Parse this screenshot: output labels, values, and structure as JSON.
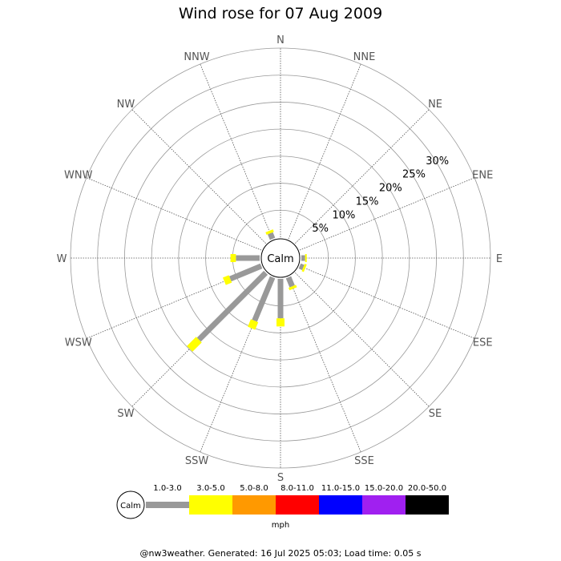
{
  "title": "Wind rose for 07 Aug 2009",
  "footer": "@nw3weather. Generated: 16 Jul 2025 05:03; Load time: 0.05 s",
  "calm_label": "Calm",
  "unit_label": "mph",
  "colors": {
    "grid": "#999999",
    "spoke": "#555555",
    "bin_1_3": "#999999",
    "bin_3_5": "#ffff00",
    "bin_5_8": "#ff9900",
    "bin_8_11": "#ff0000",
    "bin_11_15": "#0000ff",
    "bin_15_20": "#a020f0",
    "bin_20_50": "#000000"
  },
  "chart_data": {
    "type": "wind-rose",
    "title": "Wind rose for 07 Aug 2009",
    "directions": [
      "N",
      "NNE",
      "NE",
      "ENE",
      "E",
      "ESE",
      "SE",
      "SSE",
      "S",
      "SSW",
      "SW",
      "WSW",
      "W",
      "WNW",
      "NW",
      "NNW"
    ],
    "radial_ticks": [
      "5%",
      "10%",
      "15%",
      "20%",
      "25%",
      "30%"
    ],
    "radial_max": 35,
    "legend": [
      "1.0-3.0",
      "3.0-5.0",
      "5.0-8.0",
      "8.0-11.0",
      "11.0-15.0",
      "15.0-20.0",
      "20.0-50.0"
    ],
    "series": [
      {
        "name": "1.0-3.0",
        "values": [
          0,
          0,
          0,
          0,
          0.7,
          0.7,
          0,
          1.8,
          7.3,
          8.7,
          17.5,
          6.2,
          4.4,
          0,
          0,
          1.1
        ]
      },
      {
        "name": "3.0-5.0",
        "values": [
          0,
          0,
          0,
          0,
          0.3,
          0.4,
          0,
          0.5,
          1.5,
          1.5,
          2.4,
          1.2,
          1.0,
          0,
          0,
          0.5
        ]
      },
      {
        "name": "5.0-8.0",
        "values": [
          0,
          0,
          0,
          0,
          0,
          0,
          0,
          0,
          0,
          0,
          0,
          0,
          0,
          0,
          0,
          0
        ]
      },
      {
        "name": "8.0-11.0",
        "values": [
          0,
          0,
          0,
          0,
          0,
          0,
          0,
          0,
          0,
          0,
          0,
          0,
          0,
          0,
          0,
          0
        ]
      },
      {
        "name": "11.0-15.0",
        "values": [
          0,
          0,
          0,
          0,
          0,
          0,
          0,
          0,
          0,
          0,
          0,
          0,
          0,
          0,
          0,
          0
        ]
      },
      {
        "name": "15.0-20.0",
        "values": [
          0,
          0,
          0,
          0,
          0,
          0,
          0,
          0,
          0,
          0,
          0,
          0,
          0,
          0,
          0,
          0
        ]
      },
      {
        "name": "20.0-50.0",
        "values": [
          0,
          0,
          0,
          0,
          0,
          0,
          0,
          0,
          0,
          0,
          0,
          0,
          0,
          0,
          0,
          0
        ]
      }
    ]
  }
}
